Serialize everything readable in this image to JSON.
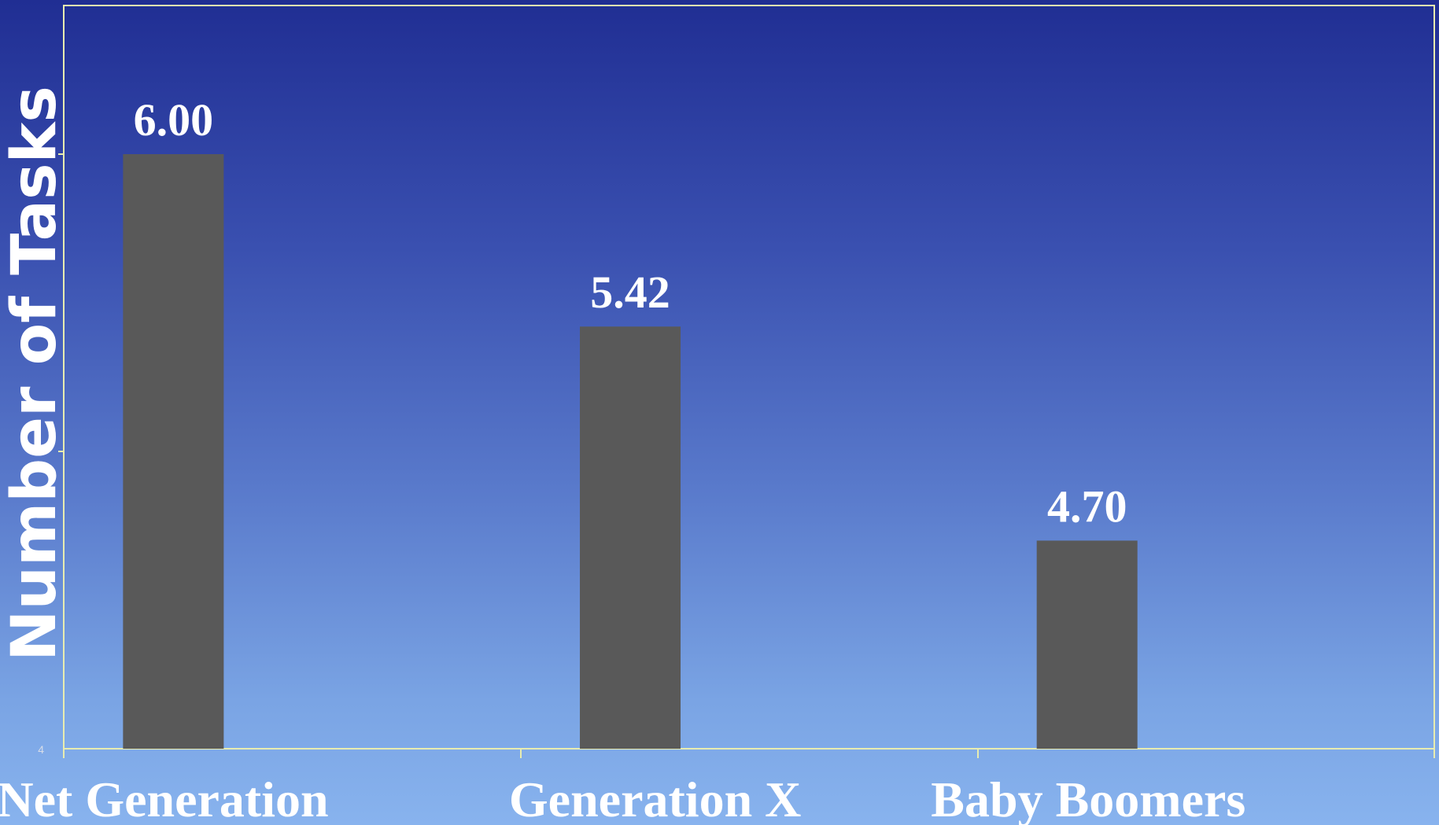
{
  "chart_data": {
    "type": "bar",
    "categories": [
      "Net Generation",
      "Generation X",
      "Baby Boomers"
    ],
    "values": [
      6.0,
      5.42,
      4.7
    ],
    "value_labels": [
      "6.00",
      "5.42",
      "4.70"
    ],
    "ylabel": "Number of Tasks",
    "ylim": [
      4,
      6.5
    ],
    "y_tick_label": "4",
    "grid": false,
    "legend": "none",
    "colors": {
      "bar": "#595959",
      "axis": "#e8ecb0",
      "text": "#ffffff"
    }
  }
}
